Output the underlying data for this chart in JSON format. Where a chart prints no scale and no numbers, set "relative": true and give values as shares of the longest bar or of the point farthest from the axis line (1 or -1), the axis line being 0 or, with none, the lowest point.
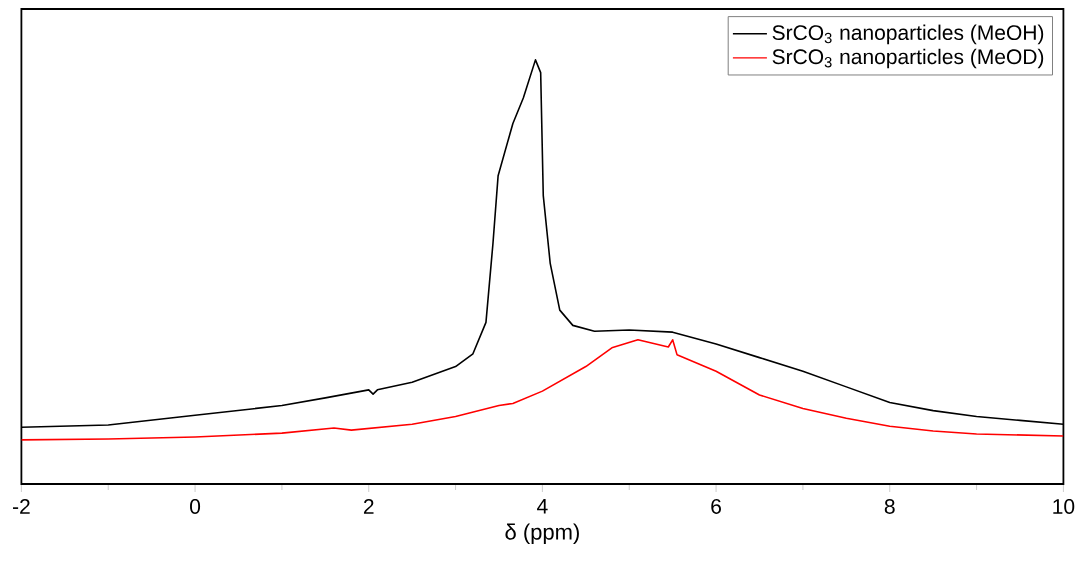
{
  "chart_data": {
    "type": "line",
    "xlabel": "δ (ppm)",
    "relative": true,
    "xlim": [
      -2,
      10
    ],
    "xticks": [
      -2,
      0,
      2,
      4,
      6,
      8,
      10
    ],
    "legend": "top right",
    "grid": false,
    "marker": "none",
    "line_style": "solid",
    "series": [
      {
        "name": "SrCO$_{3}$ nanoparticles (MeOH)",
        "color": "#000000",
        "x": [
          -2,
          -1,
          0,
          1,
          1.5,
          2,
          2.05,
          2.1,
          2.5,
          3,
          3.2,
          3.35,
          3.43,
          3.49,
          3.66,
          3.78,
          3.92,
          3.98,
          4.01,
          4.09,
          4.2,
          4.35,
          4.6,
          5,
          5.5,
          6,
          6.5,
          7,
          7.5,
          8,
          8.5,
          9,
          9.5,
          10
        ],
        "values": [
          0.134,
          0.139,
          0.162,
          0.185,
          0.203,
          0.222,
          0.212,
          0.222,
          0.24,
          0.277,
          0.307,
          0.381,
          0.566,
          0.727,
          0.85,
          0.91,
          1.0,
          0.97,
          0.68,
          0.52,
          0.41,
          0.374,
          0.36,
          0.363,
          0.358,
          0.33,
          0.298,
          0.266,
          0.229,
          0.192,
          0.173,
          0.159,
          0.15,
          0.141
        ]
      },
      {
        "name": "SrCO$_{3}$ nanoparticles (MeOD)",
        "color": "#ff0000",
        "x": [
          -2,
          -1,
          0,
          1,
          1.6,
          1.8,
          2.5,
          3,
          3.5,
          3.66,
          4,
          4.5,
          4.8,
          5.1,
          5.45,
          5.5,
          5.55,
          6,
          6.5,
          7,
          7.5,
          8,
          8.5,
          9,
          10
        ],
        "values": [
          0.104,
          0.106,
          0.111,
          0.12,
          0.132,
          0.127,
          0.141,
          0.159,
          0.185,
          0.19,
          0.219,
          0.277,
          0.321,
          0.34,
          0.323,
          0.34,
          0.305,
          0.266,
          0.21,
          0.178,
          0.155,
          0.136,
          0.125,
          0.118,
          0.113
        ]
      }
    ]
  }
}
